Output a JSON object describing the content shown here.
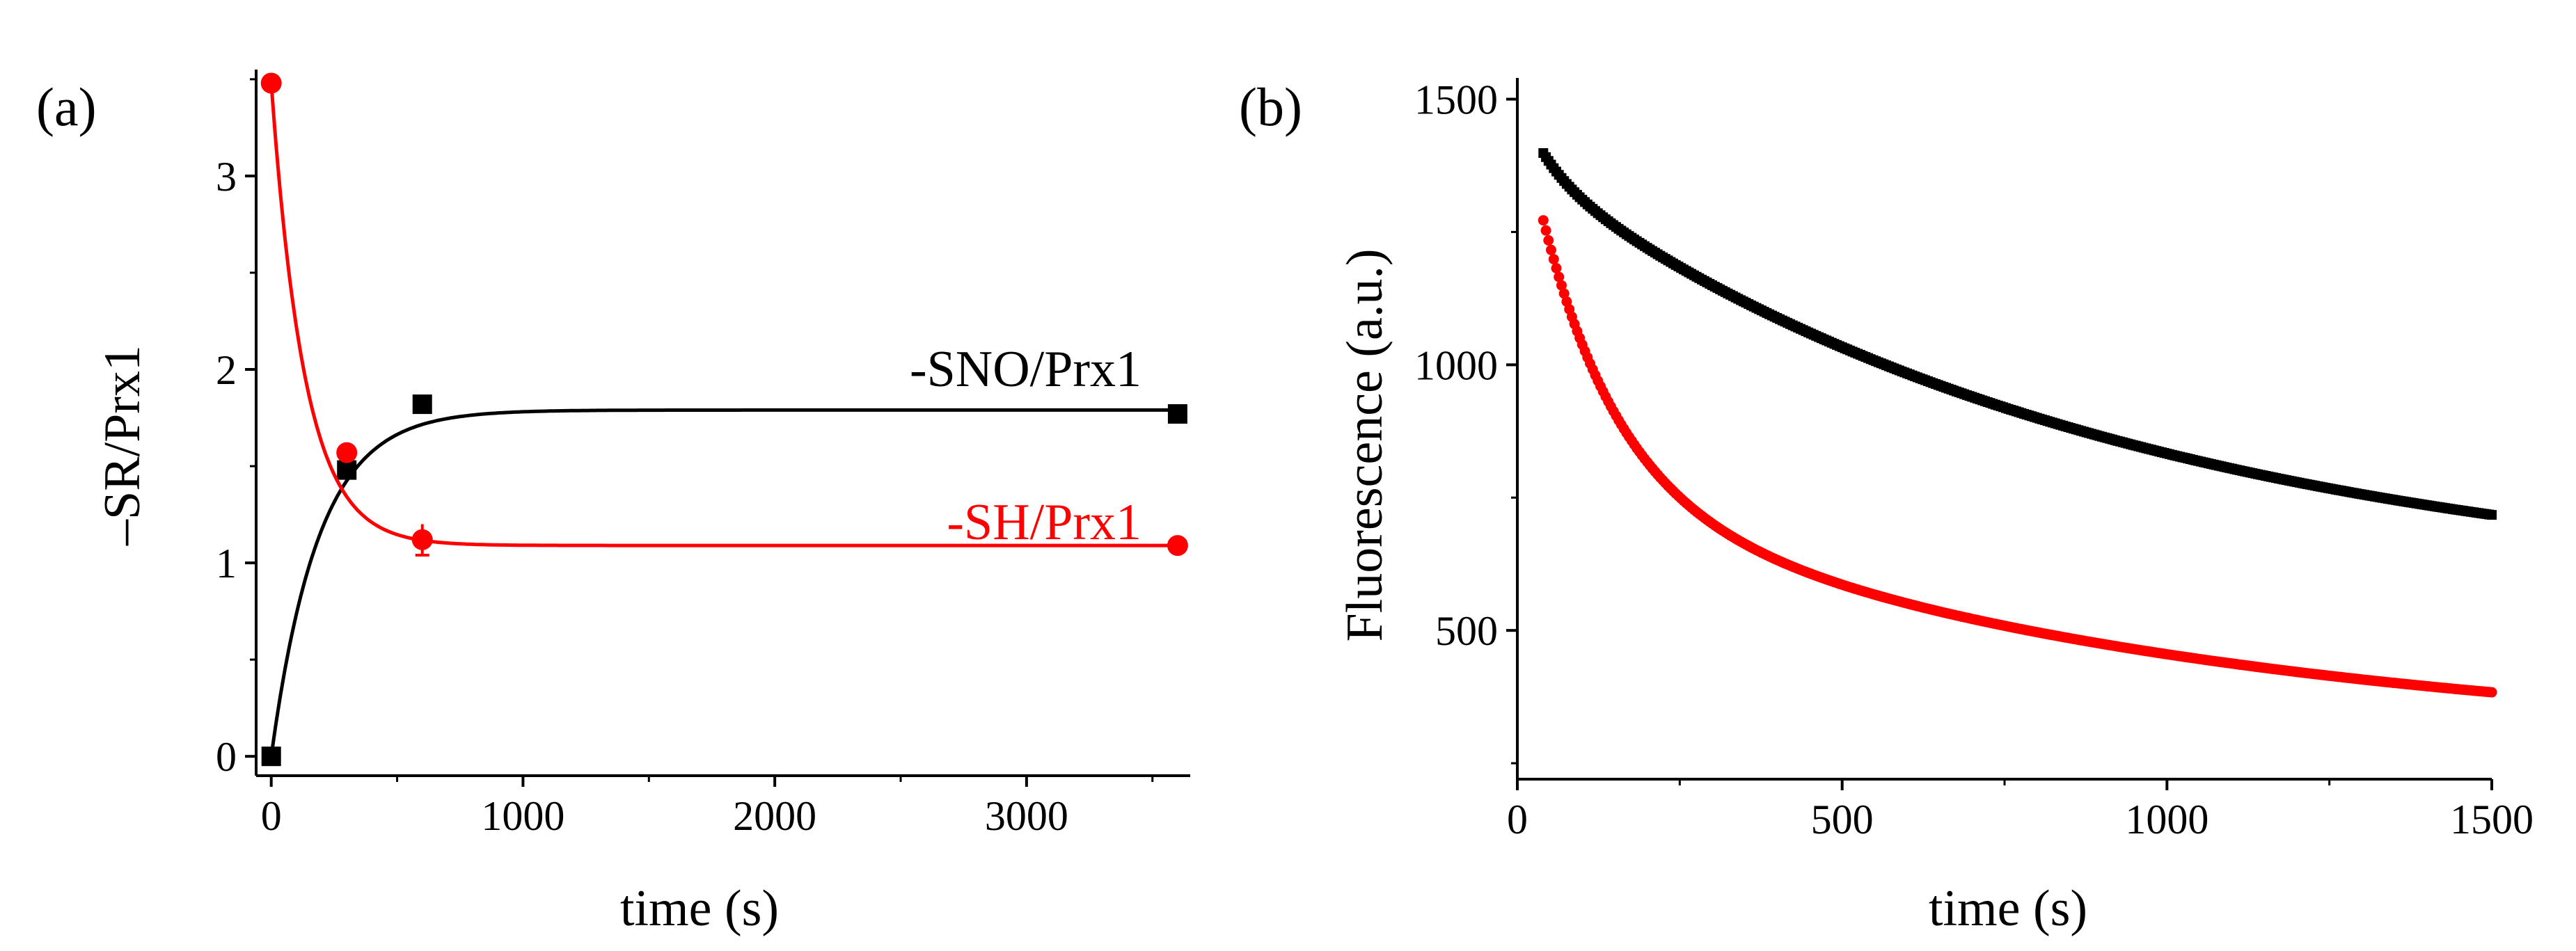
{
  "colors": {
    "black": "#000000",
    "red": "#ff0000"
  },
  "chart_data": [
    {
      "panel_label": "(a)",
      "type": "line",
      "xlabel": "time (s)",
      "ylabel": "–SR/Prx1",
      "xlim": [
        -60,
        3650
      ],
      "ylim": [
        -0.1,
        3.55
      ],
      "xticks": [
        0,
        1000,
        2000,
        3000
      ],
      "yticks": [
        0,
        1,
        2,
        3
      ],
      "grid": false,
      "series": [
        {
          "name": "-SNO/Prx1",
          "color": "#000000",
          "marker": "square",
          "points": [
            [
              0,
              0.0
            ],
            [
              300,
              1.48
            ],
            [
              600,
              1.82
            ],
            [
              3600,
              1.77
            ]
          ],
          "fit": {
            "model": "rise",
            "a": 1.79,
            "k": 0.0053
          }
        },
        {
          "name": "-SH/Prx1",
          "color": "#ff0000",
          "marker": "circle",
          "points": [
            [
              0,
              3.48
            ],
            [
              300,
              1.57
            ],
            [
              600,
              1.12
            ],
            [
              3600,
              1.09
            ]
          ],
          "fit": {
            "model": "decay",
            "base": 1.09,
            "a": 2.39,
            "k": 0.0075
          }
        }
      ]
    },
    {
      "panel_label": "(b)",
      "type": "scatter",
      "xlabel": "time (s)",
      "ylabel": "Fluorescence (a.u.)",
      "xlim": [
        0,
        1500
      ],
      "ylim": [
        220,
        1540
      ],
      "xticks": [
        0,
        500,
        1000,
        1500
      ],
      "yticks": [
        500,
        1000,
        1500
      ],
      "grid": false,
      "series": [
        {
          "color": "#000000",
          "marker": "square",
          "t_start": 40,
          "t_end": 1500,
          "fit": {
            "model": "biexp",
            "base": 560,
            "a1": 120,
            "k1": 0.02,
            "a2": 820,
            "k2": 0.0011
          }
        },
        {
          "color": "#ff0000",
          "marker": "circle",
          "t_start": 40,
          "t_end": 1500,
          "fit": {
            "model": "biexp",
            "base": 280,
            "a1": 720,
            "k1": 0.0085,
            "a2": 500,
            "k2": 0.00105
          }
        }
      ]
    }
  ]
}
